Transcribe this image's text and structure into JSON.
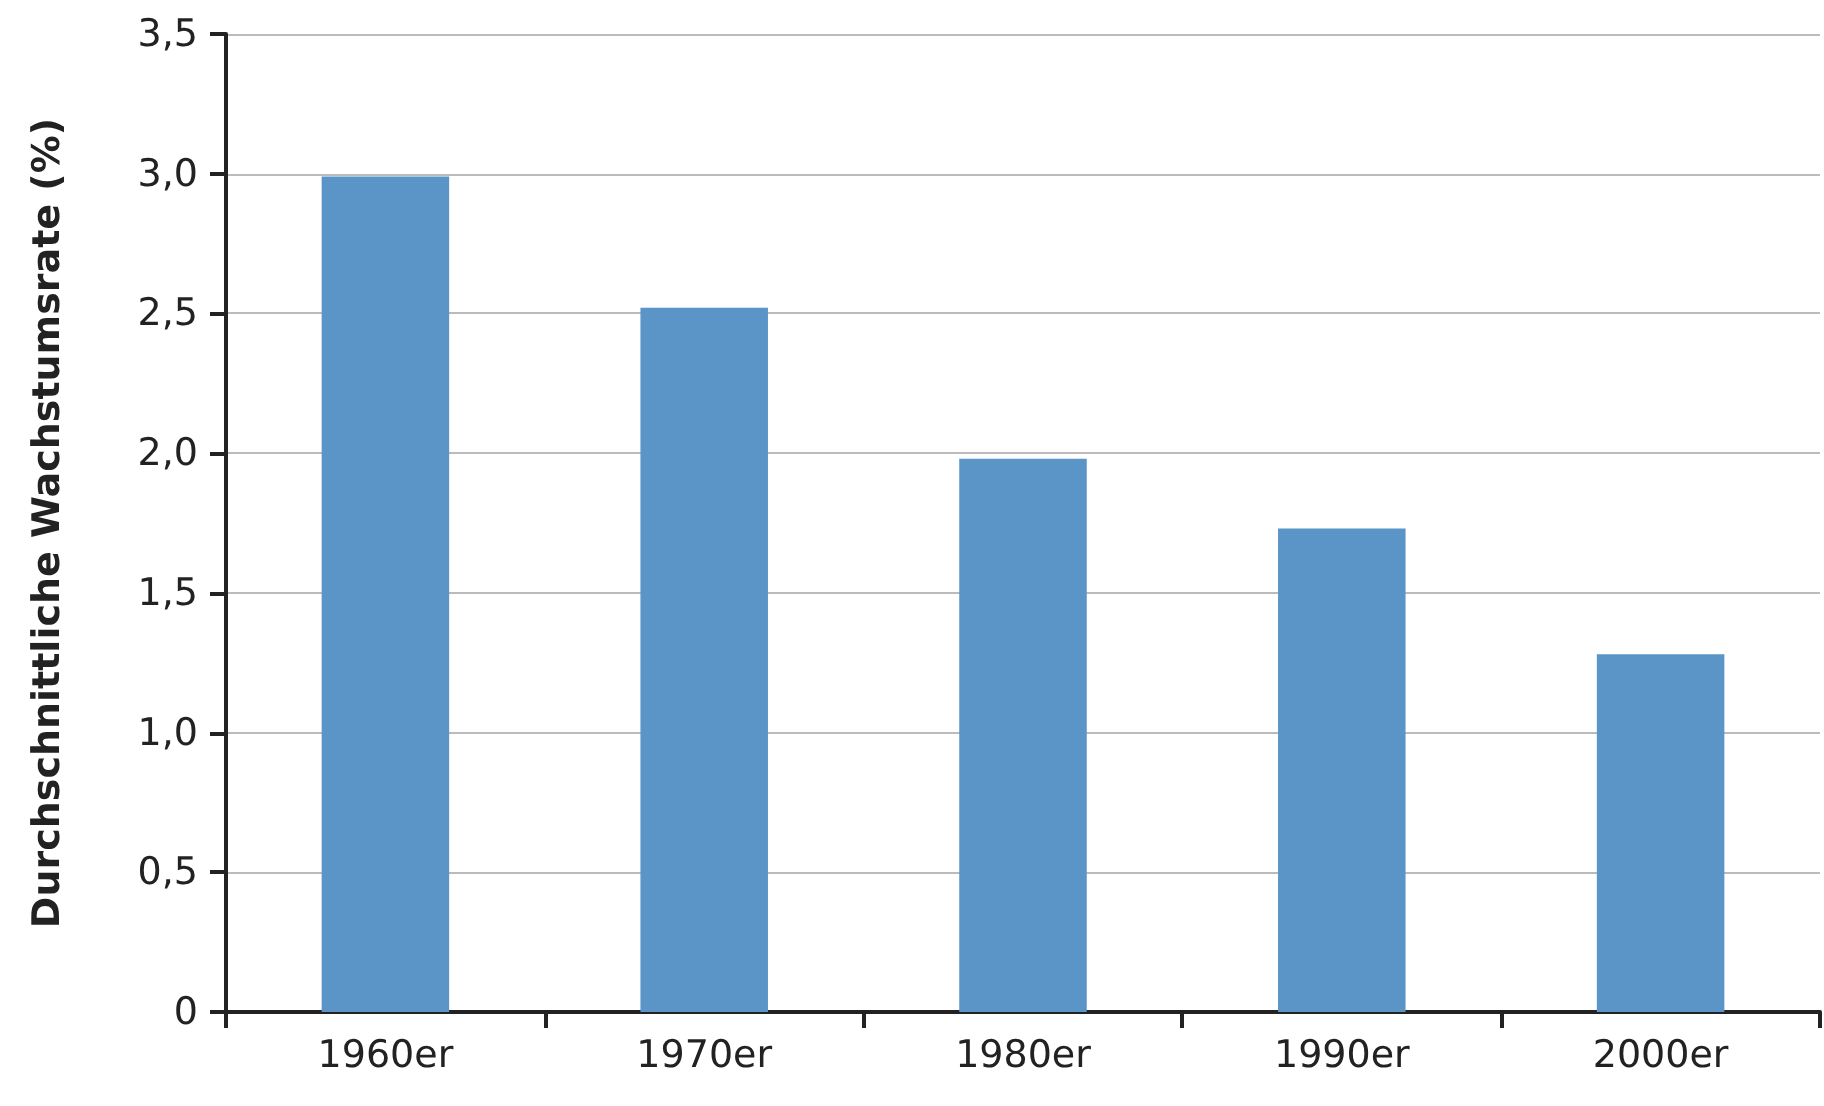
{
  "chart_data": {
    "type": "bar",
    "ylabel": "Durchschnittliche Wachstumsrate (%)",
    "categories": [
      "1960er",
      "1970er",
      "1980er",
      "1990er",
      "2000er"
    ],
    "values": [
      2.99,
      2.52,
      1.98,
      1.73,
      1.28
    ],
    "color": "#5b94c6",
    "ylim": [
      0,
      3.5
    ],
    "yticks": [
      0,
      {
        "value": 0.5,
        "label": "0,5"
      },
      {
        "value": 1,
        "label": "1,0"
      },
      {
        "value": 1.5,
        "label": "1,5"
      },
      {
        "value": 2,
        "label": "2,0"
      },
      {
        "value": 2.5,
        "label": "2,5"
      },
      {
        "value": 3,
        "label": "3,0"
      },
      {
        "value": 3.5,
        "label": "3,5"
      }
    ],
    "grid": "y"
  }
}
